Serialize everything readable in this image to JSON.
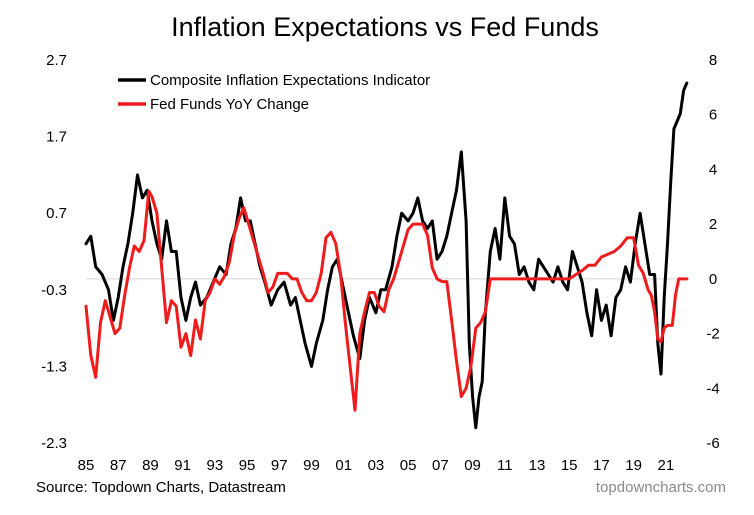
{
  "chart_data": {
    "type": "line",
    "title": "Inflation Expectations vs Fed Funds",
    "xlabel": "",
    "ylabel": "",
    "x_ticks": [
      "85",
      "87",
      "89",
      "91",
      "93",
      "95",
      "97",
      "99",
      "01",
      "03",
      "05",
      "07",
      "09",
      "11",
      "13",
      "15",
      "17",
      "19",
      "21"
    ],
    "x_range": [
      1985,
      2022.5
    ],
    "left_axis": {
      "ticks": [
        "2.7",
        "1.7",
        "0.7",
        "-0.3",
        "-1.3",
        "-2.3"
      ],
      "ylim": [
        -2.3,
        2.7
      ]
    },
    "right_axis": {
      "ticks": [
        "8",
        "6",
        "4",
        "2",
        "0",
        "-2",
        "-4",
        "-6"
      ],
      "ylim": [
        -6,
        8
      ]
    },
    "legend_position": "top-left",
    "series": [
      {
        "name": "Composite Inflation Expectations Indicator",
        "color": "#000000",
        "axis": "left",
        "x": [
          1985.0,
          1985.3,
          1985.6,
          1986.0,
          1986.4,
          1986.7,
          1987.0,
          1987.3,
          1987.6,
          1987.9,
          1988.2,
          1988.5,
          1988.8,
          1989.1,
          1989.4,
          1989.7,
          1990.0,
          1990.3,
          1990.6,
          1990.9,
          1991.2,
          1991.5,
          1991.8,
          1992.1,
          1992.5,
          1992.9,
          1993.3,
          1993.7,
          1994.0,
          1994.3,
          1994.6,
          1994.9,
          1995.2,
          1995.5,
          1995.8,
          1996.1,
          1996.5,
          1996.9,
          1997.3,
          1997.7,
          1998.0,
          1998.3,
          1998.6,
          1999.0,
          1999.3,
          1999.7,
          2000.0,
          2000.3,
          2000.6,
          2001.0,
          2001.3,
          2001.6,
          2002.0,
          2002.3,
          2002.6,
          2003.0,
          2003.3,
          2003.6,
          2004.0,
          2004.3,
          2004.6,
          2005.0,
          2005.3,
          2005.6,
          2005.9,
          2006.2,
          2006.5,
          2006.8,
          2007.1,
          2007.4,
          2007.7,
          2008.0,
          2008.3,
          2008.6,
          2008.8,
          2009.0,
          2009.2,
          2009.4,
          2009.6,
          2009.8,
          2010.1,
          2010.4,
          2010.7,
          2011.0,
          2011.3,
          2011.6,
          2011.9,
          2012.2,
          2012.5,
          2012.8,
          2013.1,
          2013.4,
          2013.7,
          2014.0,
          2014.3,
          2014.6,
          2014.9,
          2015.2,
          2015.5,
          2015.8,
          2016.1,
          2016.4,
          2016.7,
          2017.0,
          2017.3,
          2017.6,
          2017.9,
          2018.2,
          2018.5,
          2018.8,
          2019.1,
          2019.4,
          2019.7,
          2020.0,
          2020.3,
          2020.5,
          2020.7,
          2020.9,
          2021.1,
          2021.3,
          2021.5,
          2021.7,
          2021.9,
          2022.1,
          2022.3
        ],
        "y": [
          0.3,
          0.4,
          0.0,
          -0.1,
          -0.3,
          -0.7,
          -0.4,
          0.0,
          0.3,
          0.7,
          1.2,
          0.9,
          1.0,
          0.6,
          0.3,
          0.1,
          0.6,
          0.2,
          0.2,
          -0.4,
          -0.7,
          -0.4,
          -0.2,
          -0.5,
          -0.4,
          -0.2,
          0.0,
          -0.1,
          0.3,
          0.5,
          0.9,
          0.6,
          0.6,
          0.3,
          0.0,
          -0.2,
          -0.5,
          -0.3,
          -0.2,
          -0.5,
          -0.4,
          -0.7,
          -1.0,
          -1.3,
          -1.0,
          -0.7,
          -0.3,
          0.0,
          0.1,
          -0.3,
          -0.6,
          -0.9,
          -1.2,
          -0.7,
          -0.4,
          -0.6,
          -0.3,
          -0.3,
          0.0,
          0.4,
          0.7,
          0.6,
          0.7,
          0.9,
          0.6,
          0.5,
          0.6,
          0.1,
          0.2,
          0.4,
          0.7,
          1.0,
          1.5,
          0.6,
          -1.0,
          -1.7,
          -2.1,
          -1.7,
          -1.5,
          -0.6,
          0.2,
          0.5,
          0.1,
          0.9,
          0.4,
          0.3,
          -0.1,
          0.0,
          -0.2,
          -0.3,
          0.1,
          0.0,
          -0.1,
          -0.2,
          0.0,
          -0.2,
          -0.3,
          0.2,
          0.0,
          -0.2,
          -0.6,
          -0.9,
          -0.3,
          -0.7,
          -0.5,
          -0.9,
          -0.4,
          -0.3,
          0.0,
          -0.2,
          0.3,
          0.7,
          0.3,
          -0.1,
          -0.1,
          -1.0,
          -1.4,
          -0.4,
          0.3,
          1.1,
          1.8,
          1.9,
          2.0,
          2.3,
          2.4
        ]
      },
      {
        "name": "Fed Funds YoY Change",
        "color": "#ee1c1c",
        "axis": "right",
        "x": [
          1985.0,
          1985.3,
          1985.6,
          1985.9,
          1986.2,
          1986.5,
          1986.8,
          1987.1,
          1987.4,
          1987.7,
          1988.0,
          1988.3,
          1988.6,
          1988.9,
          1989.1,
          1989.4,
          1989.7,
          1990.0,
          1990.3,
          1990.6,
          1990.9,
          1991.2,
          1991.5,
          1991.8,
          1992.1,
          1992.4,
          1992.7,
          1993.0,
          1993.3,
          1993.6,
          1993.9,
          1994.2,
          1994.5,
          1994.8,
          1995.1,
          1995.4,
          1995.7,
          1996.0,
          1996.3,
          1996.6,
          1996.9,
          1997.2,
          1997.5,
          1997.8,
          1998.1,
          1998.4,
          1998.7,
          1999.0,
          1999.3,
          1999.6,
          1999.9,
          2000.2,
          2000.5,
          2000.8,
          2001.1,
          2001.4,
          2001.7,
          2002.0,
          2002.3,
          2002.6,
          2002.9,
          2003.2,
          2003.5,
          2003.8,
          2004.1,
          2004.4,
          2004.7,
          2005.0,
          2005.3,
          2005.6,
          2005.9,
          2006.2,
          2006.5,
          2006.8,
          2007.1,
          2007.4,
          2007.7,
          2008.0,
          2008.3,
          2008.6,
          2008.9,
          2009.2,
          2009.5,
          2009.8,
          2010.1,
          2010.4,
          2010.7,
          2011.0,
          2012.0,
          2013.0,
          2014.0,
          2015.0,
          2015.8,
          2016.2,
          2016.6,
          2017.0,
          2017.4,
          2017.8,
          2018.2,
          2018.6,
          2019.0,
          2019.3,
          2019.6,
          2019.9,
          2020.1,
          2020.3,
          2020.5,
          2020.7,
          2020.9,
          2021.1,
          2021.4,
          2021.6,
          2021.8,
          2022.3
        ],
        "y": [
          -1.0,
          -2.8,
          -3.6,
          -1.6,
          -0.8,
          -1.4,
          -2.0,
          -1.8,
          -0.6,
          0.4,
          1.2,
          1.0,
          1.4,
          3.2,
          3.0,
          2.4,
          0.4,
          -1.6,
          -0.8,
          -1.0,
          -2.5,
          -2.0,
          -2.8,
          -1.5,
          -2.2,
          -0.8,
          -0.5,
          0.0,
          -0.2,
          0.1,
          0.6,
          1.6,
          2.2,
          2.6,
          2.0,
          1.4,
          0.8,
          0.2,
          -0.5,
          -0.3,
          0.2,
          0.2,
          0.2,
          0.0,
          0.0,
          -0.5,
          -0.8,
          -0.8,
          -0.5,
          0.2,
          1.5,
          1.7,
          1.3,
          0.2,
          -1.6,
          -3.2,
          -4.8,
          -2.0,
          -1.2,
          -0.5,
          -0.5,
          -1.0,
          -1.2,
          -0.4,
          0.0,
          0.6,
          1.2,
          1.8,
          2.0,
          2.0,
          2.0,
          1.6,
          0.4,
          0.0,
          -0.1,
          -0.1,
          -1.5,
          -3.0,
          -4.3,
          -4.0,
          -3.2,
          -1.8,
          -1.6,
          -1.2,
          0.0,
          0.0,
          0.0,
          0.0,
          0.0,
          0.0,
          0.0,
          0.0,
          0.3,
          0.5,
          0.5,
          0.8,
          0.9,
          1.0,
          1.2,
          1.5,
          1.5,
          0.5,
          0.2,
          -0.4,
          -0.6,
          -1.2,
          -2.2,
          -2.3,
          -1.8,
          -1.7,
          -1.7,
          -0.6,
          0.0,
          0.0
        ]
      }
    ]
  },
  "footer": {
    "source": "Source: Topdown Charts, Datastream",
    "brand": "topdowncharts.com"
  }
}
